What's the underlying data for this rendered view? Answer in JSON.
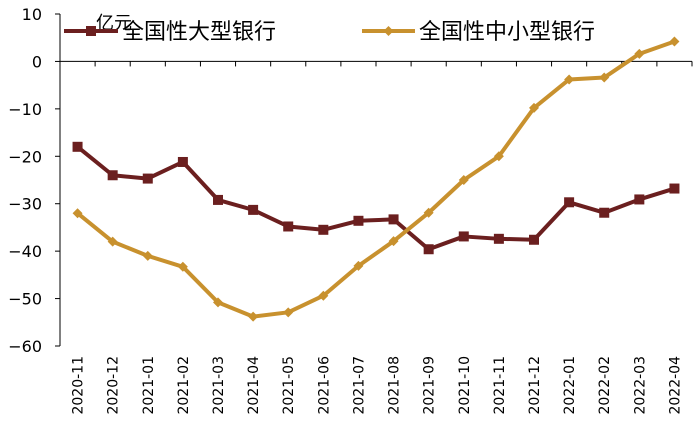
{
  "chart_data": {
    "type": "line",
    "unit_label": "亿元",
    "categories": [
      "2020-11",
      "2020-12",
      "2021-01",
      "2021-02",
      "2021-03",
      "2021-04",
      "2021-05",
      "2021-06",
      "2021-07",
      "2021-08",
      "2021-09",
      "2021-10",
      "2021-11",
      "2021-12",
      "2022-01",
      "2022-02",
      "2022-03",
      "2022-04"
    ],
    "series": [
      {
        "name": "全国性大型银行",
        "color": "#6b1f1f",
        "marker": "square",
        "values": [
          -18,
          -24,
          -24.7,
          -21.2,
          -29.2,
          -31.3,
          -34.8,
          -35.5,
          -33.6,
          -33.3,
          -39.6,
          -36.9,
          -37.4,
          -37.6,
          -29.7,
          -31.9,
          -29.1,
          -26.8
        ]
      },
      {
        "name": "全国性中小型银行",
        "color": "#c8912e",
        "marker": "diamond",
        "values": [
          -32,
          -38,
          -41,
          -43.3,
          -50.8,
          -53.8,
          -52.9,
          -49.4,
          -43.1,
          -37.9,
          -31.9,
          -25.0,
          -20.0,
          -9.8,
          -3.8,
          -3.4,
          1.6,
          4.2
        ]
      }
    ],
    "ylim": [
      -60,
      10
    ],
    "yticks": [
      10,
      0,
      -10,
      -20,
      -30,
      -40,
      -50,
      -60
    ],
    "grid": false,
    "legend_position": "top"
  }
}
